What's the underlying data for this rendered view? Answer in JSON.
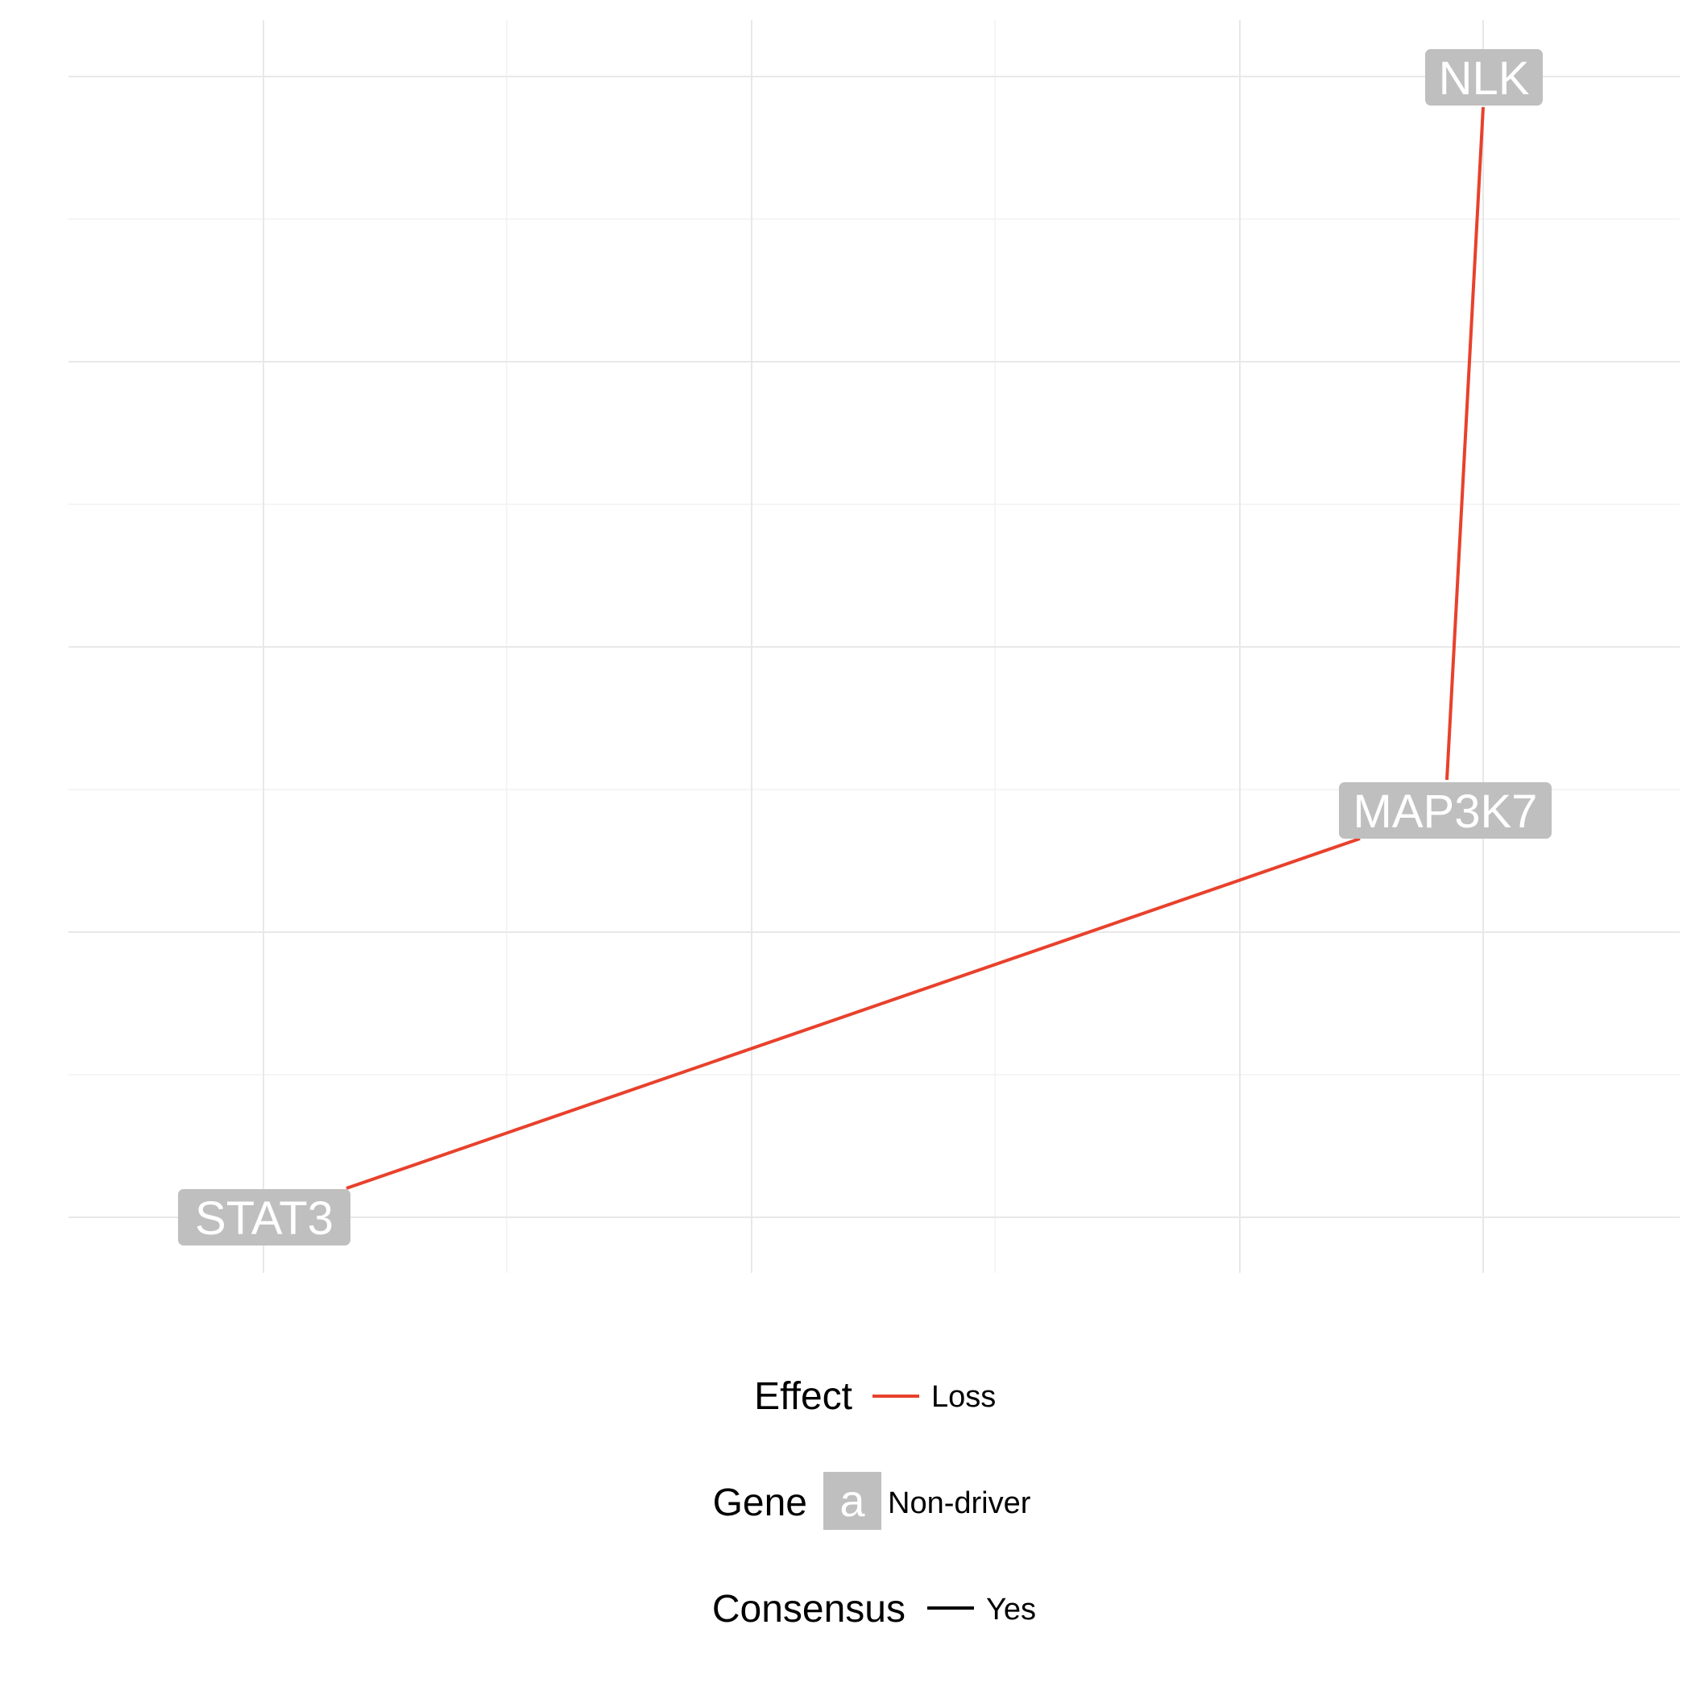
{
  "colors": {
    "background": "#ffffff",
    "grid_major": "#e8e8e8",
    "grid_minor": "#f5f5f5",
    "edge_loss": "#e8412c",
    "node_fill": "#bfbfbf",
    "node_text": "#ffffff",
    "consensus_yes": "#000000"
  },
  "nodes": [
    {
      "id": "STAT3",
      "label": "STAT3",
      "gene_type": "Non-driver"
    },
    {
      "id": "MAP3K7",
      "label": "MAP3K7",
      "gene_type": "Non-driver"
    },
    {
      "id": "NLK",
      "label": "NLK",
      "gene_type": "Non-driver"
    }
  ],
  "edges": [
    {
      "from": "STAT3",
      "to": "MAP3K7",
      "effect": "Loss",
      "consensus": "Yes"
    },
    {
      "from": "MAP3K7",
      "to": "NLK",
      "effect": "Loss",
      "consensus": "Yes"
    }
  ],
  "legend": {
    "effect": {
      "title": "Effect",
      "label": "Loss"
    },
    "gene": {
      "title": "Gene",
      "key_glyph": "a",
      "label": "Non-driver"
    },
    "consensus": {
      "title": "Consensus",
      "label": "Yes"
    }
  }
}
